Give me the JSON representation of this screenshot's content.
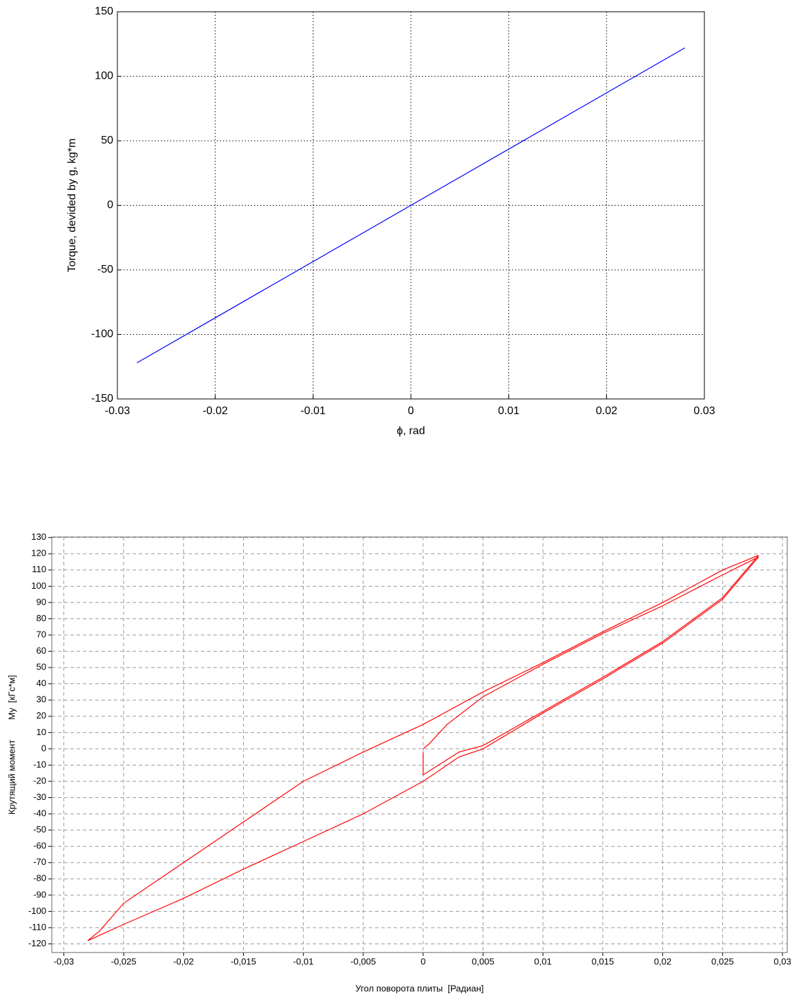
{
  "chart_data": [
    {
      "type": "line",
      "xlabel": "ϕ, rad",
      "ylabel": "Torque, devided by g, kg*m",
      "x": [
        -0.028,
        0.028
      ],
      "values": [
        -122,
        122
      ],
      "color": "#0000ff",
      "xlim": [
        -0.03,
        0.03
      ],
      "ylim": [
        -150,
        150
      ],
      "xticks": [
        -0.03,
        -0.02,
        -0.01,
        0,
        0.01,
        0.02,
        0.03
      ],
      "yticks": [
        -150,
        -100,
        -50,
        0,
        50,
        100,
        150
      ],
      "grid": true,
      "grid_style": "dotted"
    },
    {
      "type": "line",
      "xlabel": "Угол поворота плиты  [Радиан]",
      "ylabel": "Крутящий момент        My  [кГс*м]",
      "x": [
        0,
        0.0005,
        0.002,
        0.005,
        0.01,
        0.015,
        0.02,
        0.025,
        0.028,
        0.025,
        0.02,
        0.015,
        0.01,
        0.005,
        0.003,
        0,
        -0.005,
        -0.01,
        -0.015,
        -0.02,
        -0.025,
        -0.028,
        -0.027,
        -0.025,
        -0.02,
        -0.015,
        -0.01,
        -0.005,
        0,
        0.005,
        0.01,
        0.015,
        0.02,
        0.025,
        0.028,
        0.025,
        0.02,
        0.015,
        0.01,
        0.005,
        0.003,
        0,
        0,
        0
      ],
      "values": [
        0,
        3,
        15,
        32,
        52,
        71,
        88,
        107,
        118,
        92,
        65,
        43,
        22,
        0,
        -5,
        -20,
        -40,
        -57,
        -74,
        -92,
        -108,
        -118,
        -112,
        -95,
        -70,
        -45,
        -20,
        -2,
        15,
        35,
        53,
        72,
        90,
        110,
        119,
        93,
        66,
        44,
        23,
        2,
        -2,
        -16,
        -10,
        -2
      ],
      "color": "#ff0000",
      "xlim": [
        -0.031,
        0.0304
      ],
      "ylim": [
        -125.3,
        130.3
      ],
      "xticks": [
        {
          "value": -0.03,
          "label": "-0,03"
        },
        {
          "value": -0.025,
          "label": "-0,025"
        },
        {
          "value": -0.02,
          "label": "-0,02"
        },
        {
          "value": -0.015,
          "label": "-0,015"
        },
        {
          "value": -0.01,
          "label": "-0,01"
        },
        {
          "value": -0.005,
          "label": "-0,005"
        },
        0,
        {
          "value": 0.005,
          "label": "0,005"
        },
        {
          "value": 0.01,
          "label": "0,01"
        },
        {
          "value": 0.015,
          "label": "0,015"
        },
        {
          "value": 0.02,
          "label": "0,02"
        },
        {
          "value": 0.025,
          "label": "0,025"
        },
        {
          "value": 0.03,
          "label": "0,03"
        }
      ],
      "yticks": [
        -120,
        -110,
        -100,
        -90,
        -80,
        -70,
        -60,
        -50,
        -40,
        -30,
        -20,
        -10,
        0,
        10,
        20,
        30,
        40,
        50,
        60,
        70,
        80,
        90,
        100,
        110,
        120,
        130
      ],
      "grid": true,
      "grid_style": "dashed"
    }
  ]
}
